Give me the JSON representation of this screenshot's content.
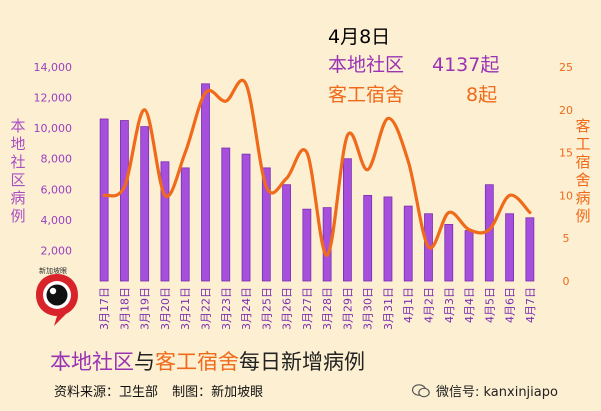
{
  "header": {
    "date": "4月8日",
    "local_label": "本地社区",
    "local_value": "4137起",
    "dorm_label": "客工宿舍",
    "dorm_value": "8起"
  },
  "axes": {
    "left_label": "本地社区病例",
    "right_label": "客工宿舍病例"
  },
  "bottom_title": {
    "part1": "本地社区",
    "part2": "与",
    "part3": "客工宿舍",
    "part4": "每日新增病例"
  },
  "credits": {
    "source": "资料来源：卫生部",
    "made_by": "制图：新加坡眼"
  },
  "watermark": {
    "text": "微信号: kanxinjiapo"
  },
  "logo": {
    "text": "新加坡眼"
  },
  "colors": {
    "bar": "#a64fdc",
    "bar_dark": "#7a2fae",
    "line": "#ef6a1a",
    "background": "#fdf0d2",
    "left_tick": "#9a3fc0"
  },
  "chart_data": {
    "type": "bar",
    "categories": [
      "3月17日",
      "3月18日",
      "3月19日",
      "3月20日",
      "3月21日",
      "3月22日",
      "3月23日",
      "3月24日",
      "3月25日",
      "3月26日",
      "3月27日",
      "3月28日",
      "3月29日",
      "3月30日",
      "3月31日",
      "4月1日",
      "4月2日",
      "4月3日",
      "4月4日",
      "4月5日",
      "4月6日",
      "4月7日"
    ],
    "y_left": {
      "ylim": [
        0,
        14000
      ],
      "ticks": [
        0,
        2000,
        4000,
        6000,
        8000,
        10000,
        12000,
        14000
      ]
    },
    "y_right": {
      "ylim": [
        0,
        25
      ],
      "ticks": [
        0,
        5,
        10,
        15,
        20,
        25
      ]
    },
    "grid": false,
    "series": [
      {
        "name": "本地社区",
        "type": "bar",
        "axis": "left",
        "values": [
          10600,
          10500,
          10100,
          7800,
          7400,
          12900,
          8700,
          8300,
          7400,
          6300,
          4700,
          4800,
          8000,
          5600,
          5500,
          4900,
          4400,
          3700,
          3300,
          6300,
          4400,
          4137
        ]
      },
      {
        "name": "客工宿舍",
        "type": "line",
        "axis": "right",
        "values": [
          10,
          11,
          20,
          10,
          15,
          22,
          21,
          23,
          11,
          12,
          15,
          3,
          17,
          13,
          19,
          14,
          4,
          8,
          6,
          6,
          10,
          8
        ]
      }
    ]
  }
}
